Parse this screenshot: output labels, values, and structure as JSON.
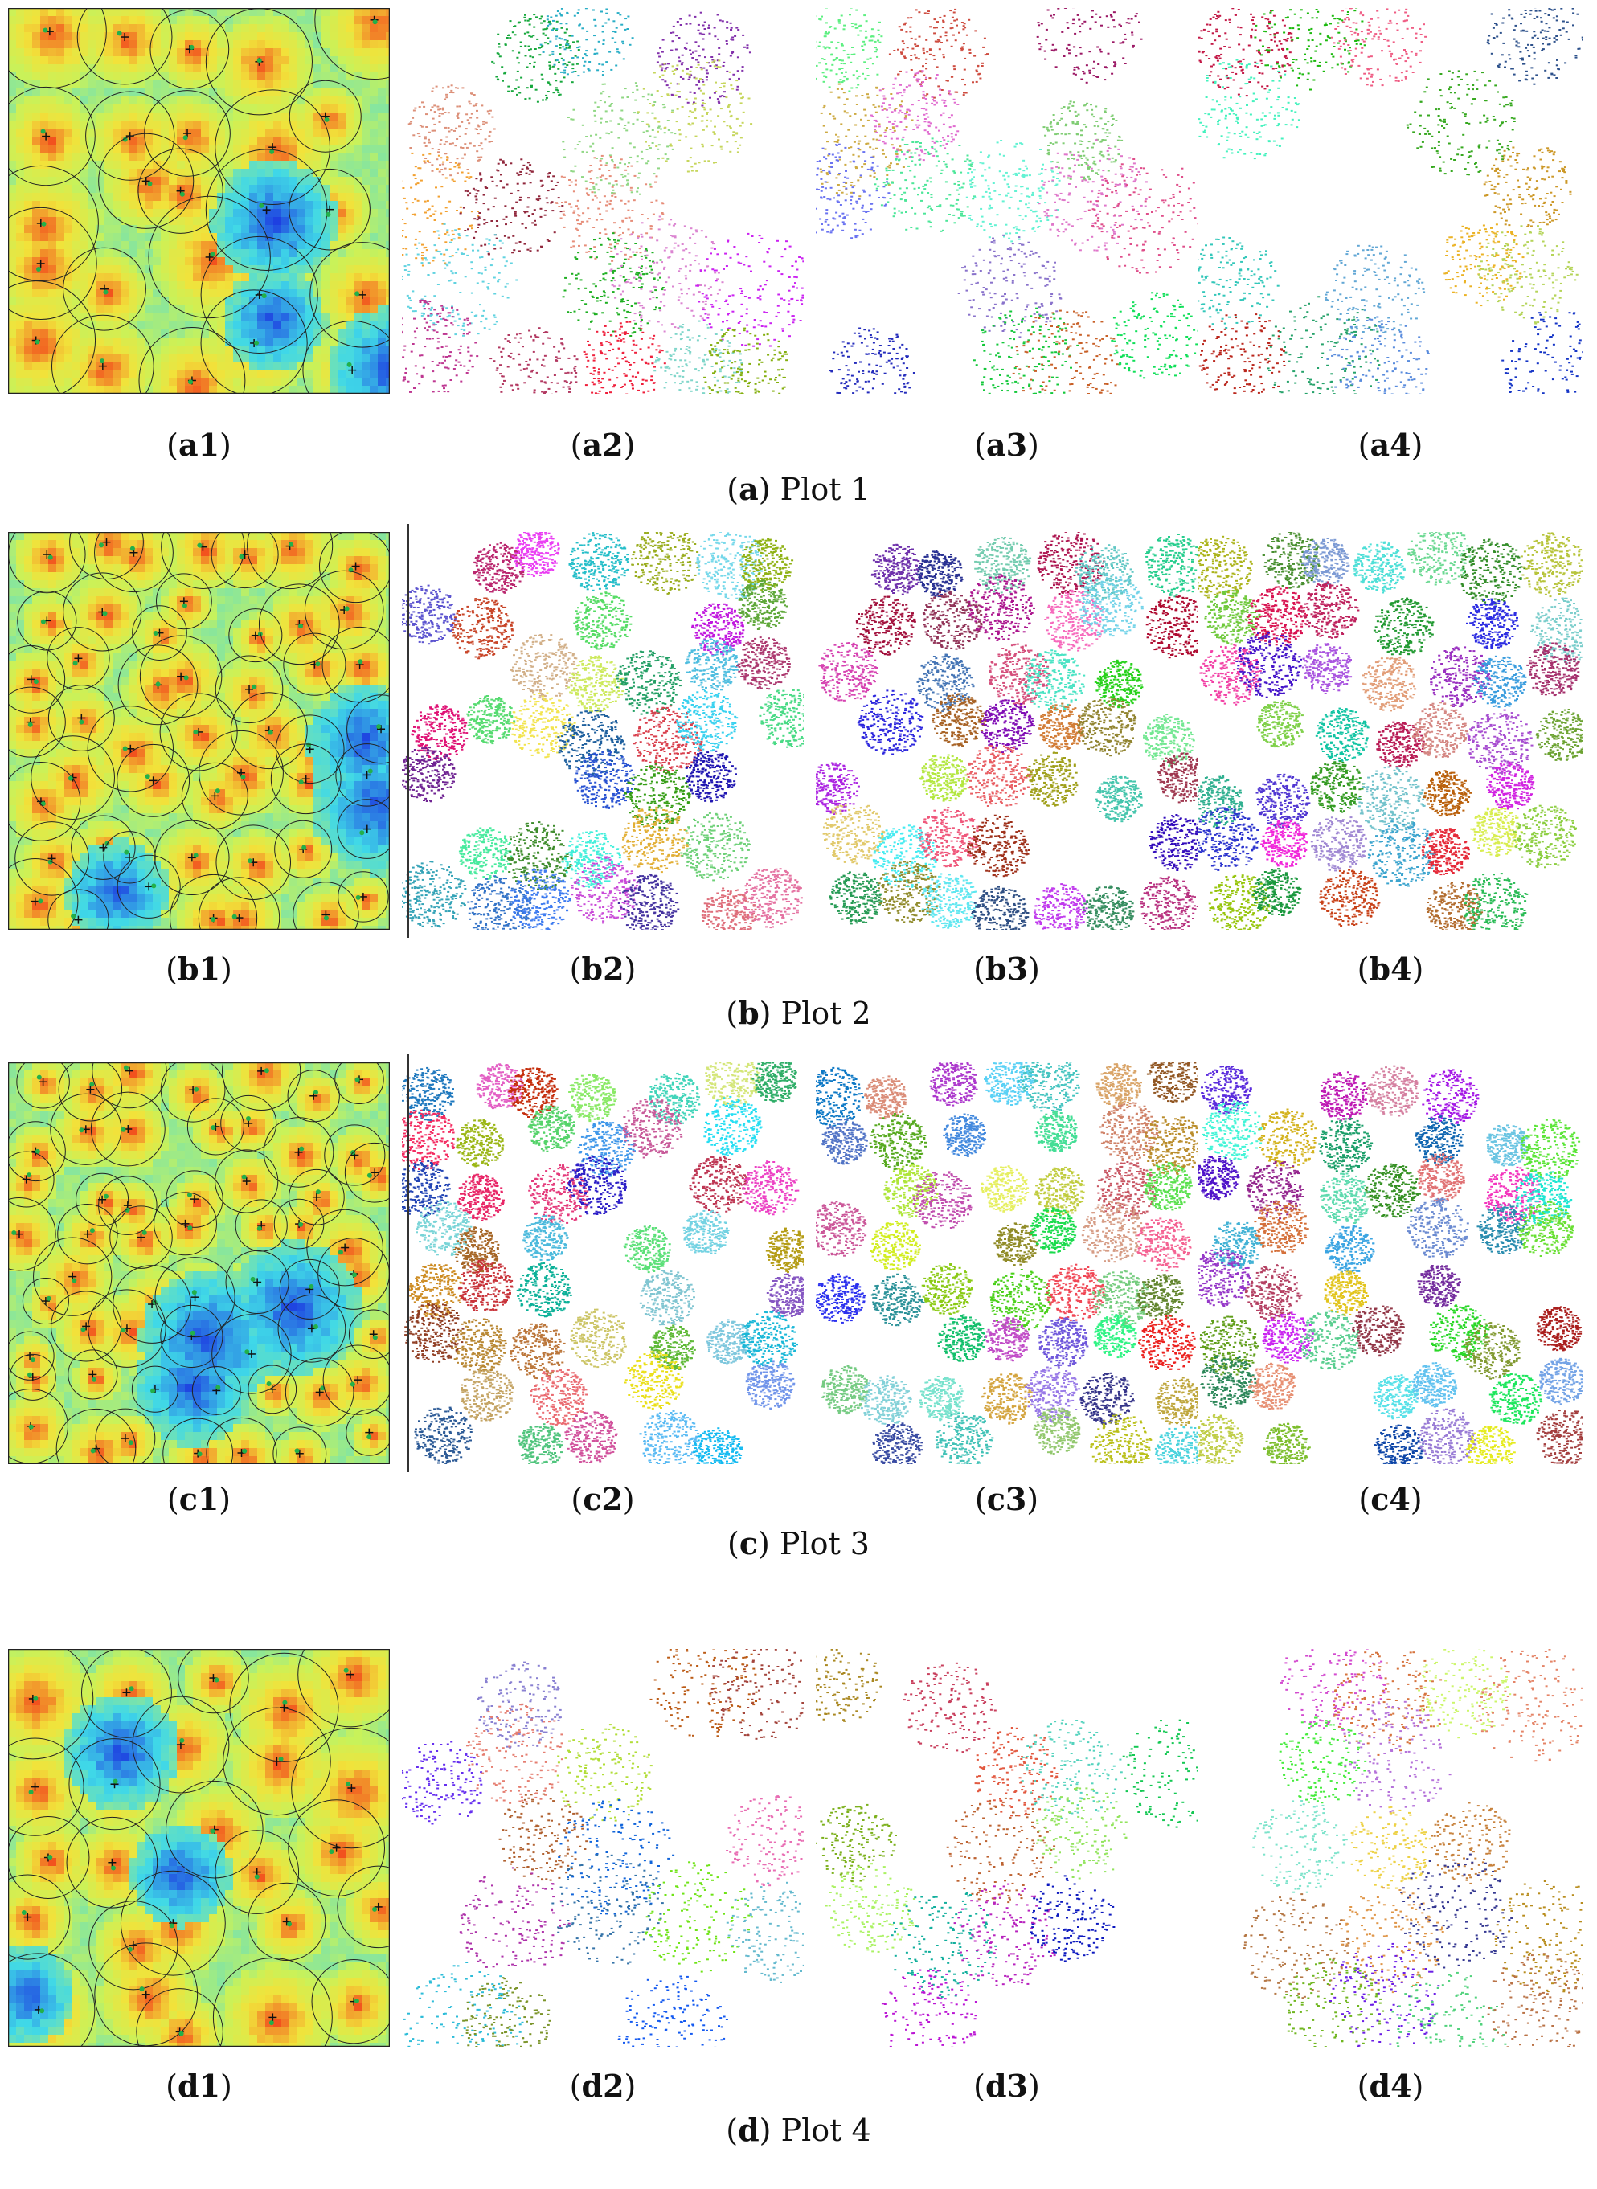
{
  "figure": {
    "rows": [
      {
        "letter": "a",
        "plot_label": "Plot 1",
        "panels": [
          {
            "id": "a1",
            "letter": "a",
            "num": "1"
          },
          {
            "id": "a2",
            "letter": "a",
            "num": "2"
          },
          {
            "id": "a3",
            "letter": "a",
            "num": "3"
          },
          {
            "id": "a4",
            "letter": "a",
            "num": "4"
          }
        ]
      },
      {
        "letter": "b",
        "plot_label": "Plot 2",
        "panels": [
          {
            "id": "b1",
            "letter": "b",
            "num": "1"
          },
          {
            "id": "b2",
            "letter": "b",
            "num": "2"
          },
          {
            "id": "b3",
            "letter": "b",
            "num": "3"
          },
          {
            "id": "b4",
            "letter": "b",
            "num": "4"
          }
        ]
      },
      {
        "letter": "c",
        "plot_label": "Plot 3",
        "panels": [
          {
            "id": "c1",
            "letter": "c",
            "num": "1"
          },
          {
            "id": "c2",
            "letter": "c",
            "num": "2"
          },
          {
            "id": "c3",
            "letter": "c",
            "num": "3"
          },
          {
            "id": "c4",
            "letter": "c",
            "num": "4"
          }
        ]
      },
      {
        "letter": "d",
        "plot_label": "Plot 4",
        "panels": [
          {
            "id": "d1",
            "letter": "d",
            "num": "1"
          },
          {
            "id": "d2",
            "letter": "d",
            "num": "2"
          },
          {
            "id": "d3",
            "letter": "d",
            "num": "3"
          },
          {
            "id": "d4",
            "letter": "d",
            "num": "4"
          }
        ]
      }
    ],
    "colors": {
      "heatmap_low": "#1a2ee0",
      "heatmap_mid_low": "#3fd8e8",
      "heatmap_mid": "#c8f25a",
      "heatmap_mid_high": "#f2e23a",
      "heatmap_high": "#f2521e",
      "marker_plus": "#111111",
      "marker_dot": "#22b04a",
      "circle_outline": "#222222"
    },
    "icons": [
      "heatmap-image",
      "point-cloud-image"
    ]
  }
}
